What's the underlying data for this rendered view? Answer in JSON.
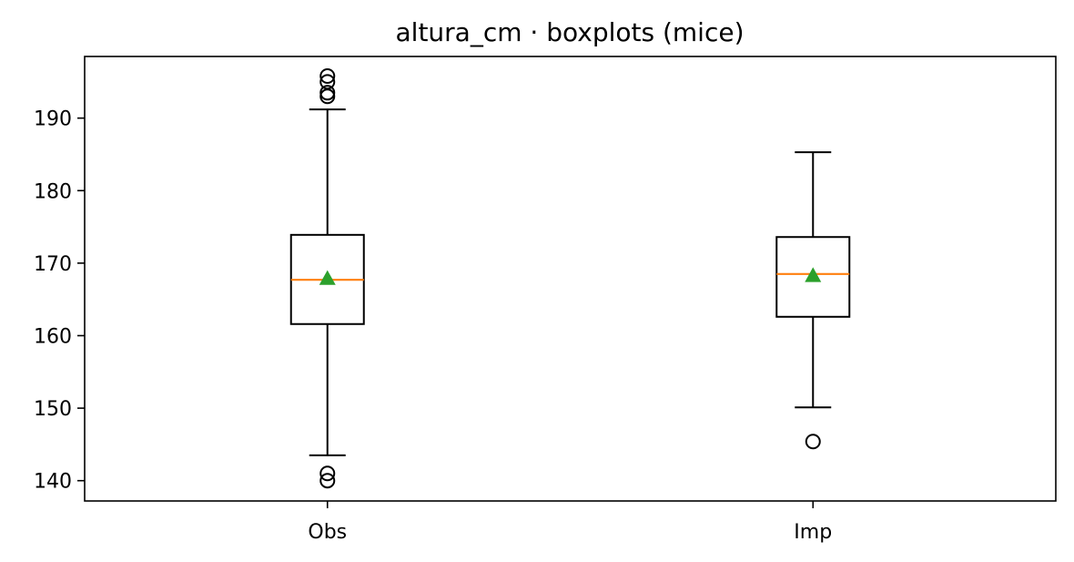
{
  "chart_data": {
    "type": "box",
    "title": "altura_cm · boxplots (mice)",
    "xlabel": "",
    "ylabel": "",
    "categories": [
      "Obs",
      "Imp"
    ],
    "ylim": [
      137.2,
      198.5
    ],
    "yticks": [
      140,
      150,
      160,
      170,
      180,
      190
    ],
    "boxes": [
      {
        "label": "Obs",
        "whisker_low": 143.5,
        "q1": 161.6,
        "median": 167.7,
        "mean": 167.9,
        "q3": 173.9,
        "whisker_high": 191.2,
        "outliers": [
          140.0,
          141.0,
          193.0,
          193.5,
          195.0,
          195.8
        ]
      },
      {
        "label": "Imp",
        "whisker_low": 150.1,
        "q1": 162.6,
        "median": 168.5,
        "mean": 168.3,
        "q3": 173.6,
        "whisker_high": 185.3,
        "outliers": [
          145.4
        ]
      }
    ],
    "colors": {
      "box": "#000000",
      "median": "#ff7f0e",
      "mean": "#2ca02c",
      "outlier": "#000000"
    }
  }
}
